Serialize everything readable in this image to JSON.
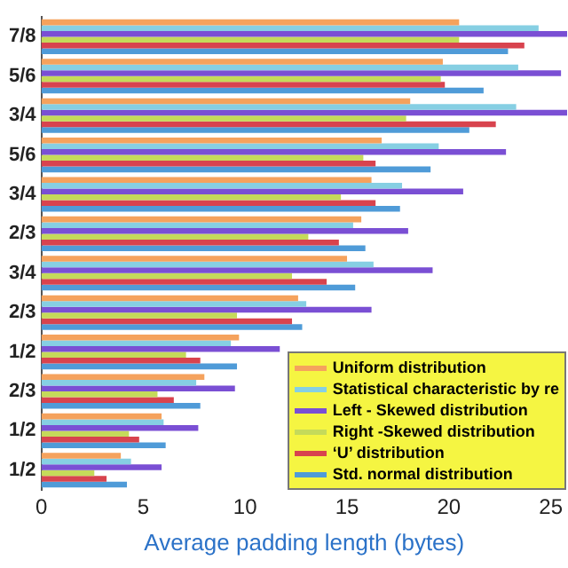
{
  "chart_data": {
    "type": "bar",
    "orientation": "horizontal",
    "xlabel": "Average padding length (bytes)",
    "categories": [
      "7/8",
      "5/6",
      "3/4",
      "5/6",
      "3/4",
      "2/3",
      "3/4",
      "2/3",
      "1/2",
      "2/3",
      "1/2",
      "1/2"
    ],
    "xlim": [
      0,
      25.8
    ],
    "xticks": [
      0,
      5,
      10,
      15,
      20,
      25
    ],
    "grid": false,
    "legend": "bottom right",
    "series": [
      {
        "name": "Uniform distribution",
        "color": "#f5a25d",
        "values": [
          20.5,
          19.7,
          18.1,
          16.7,
          16.2,
          15.7,
          15.0,
          12.6,
          9.7,
          8.0,
          5.9,
          3.9
        ]
      },
      {
        "name": "Statistical characteristic by re",
        "color": "#86cfe3",
        "values": [
          24.4,
          23.4,
          23.3,
          19.5,
          17.7,
          15.3,
          16.3,
          13.0,
          9.3,
          7.6,
          6.0,
          4.4
        ]
      },
      {
        "name": "Left  -  Skewed distribution",
        "color": "#7a4fd4",
        "values": [
          25.8,
          25.5,
          25.8,
          22.8,
          20.7,
          18.0,
          19.2,
          16.2,
          11.7,
          9.5,
          7.7,
          5.9
        ]
      },
      {
        "name": "Right -Skewed distribution",
        "color": "#c5da5a",
        "values": [
          20.5,
          19.6,
          17.9,
          15.8,
          14.7,
          13.1,
          12.3,
          9.6,
          7.1,
          5.7,
          4.3,
          2.6
        ]
      },
      {
        "name": "‘U’ distribution",
        "color": "#d8434e",
        "values": [
          23.7,
          19.8,
          22.3,
          16.4,
          16.4,
          14.6,
          14.0,
          12.3,
          7.8,
          6.5,
          4.8,
          3.2
        ]
      },
      {
        "name": "Std. normal distribution",
        "color": "#4f9bd8",
        "values": [
          22.9,
          21.7,
          21.0,
          19.1,
          17.6,
          15.9,
          15.4,
          12.8,
          9.6,
          7.8,
          6.1,
          4.2
        ]
      }
    ]
  }
}
